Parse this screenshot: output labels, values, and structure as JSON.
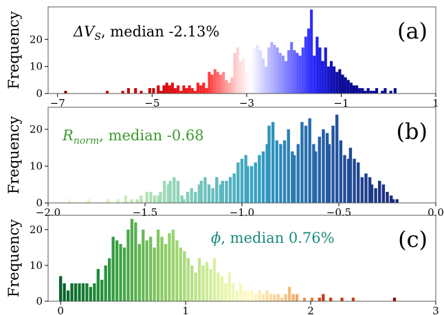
{
  "chart_data": [
    {
      "type": "bar",
      "panel_label": "(a)",
      "annotation": {
        "symbol": "ΔV",
        "subscript": "S",
        "text": ", median -2.13%",
        "color": "#000000"
      },
      "ylabel": "Frequency",
      "xlim": [
        -7.2,
        1.0
      ],
      "ylim": [
        0,
        32
      ],
      "xticks": [
        {
          "value": -7,
          "label": "−7"
        },
        {
          "value": -5,
          "label": "−5"
        },
        {
          "value": -3,
          "label": "−3"
        },
        {
          "value": -1,
          "label": "−1"
        },
        {
          "value": 1,
          "label": "1"
        }
      ],
      "yticks": [
        0,
        10,
        20
      ],
      "colormap": "seismic_r",
      "color_range": [
        -5.0,
        -1.0
      ],
      "bin_width": 0.06,
      "bins": [
        [
          -6.83,
          1
        ],
        [
          -5.95,
          1
        ],
        [
          -5.62,
          1
        ],
        [
          -5.5,
          2
        ],
        [
          -5.35,
          2
        ],
        [
          -5.23,
          1
        ],
        [
          -5.05,
          2
        ],
        [
          -4.97,
          2
        ],
        [
          -4.87,
          3
        ],
        [
          -4.81,
          1
        ],
        [
          -4.75,
          3
        ],
        [
          -4.69,
          4
        ],
        [
          -4.63,
          3
        ],
        [
          -4.57,
          4
        ],
        [
          -4.51,
          2
        ],
        [
          -4.45,
          3
        ],
        [
          -4.39,
          1
        ],
        [
          -4.33,
          3
        ],
        [
          -4.27,
          2
        ],
        [
          -4.21,
          3
        ],
        [
          -4.15,
          2
        ],
        [
          -4.09,
          1
        ],
        [
          -4.03,
          4
        ],
        [
          -3.97,
          3
        ],
        [
          -3.91,
          4
        ],
        [
          -3.85,
          2
        ],
        [
          -3.79,
          8
        ],
        [
          -3.73,
          7
        ],
        [
          -3.67,
          9
        ],
        [
          -3.61,
          8
        ],
        [
          -3.55,
          7
        ],
        [
          -3.49,
          8
        ],
        [
          -3.43,
          5
        ],
        [
          -3.37,
          4
        ],
        [
          -3.31,
          6
        ],
        [
          -3.25,
          15
        ],
        [
          -3.19,
          17
        ],
        [
          -3.13,
          12
        ],
        [
          -3.07,
          13
        ],
        [
          -3.01,
          8
        ],
        [
          -2.95,
          10
        ],
        [
          -2.89,
          13
        ],
        [
          -2.83,
          17
        ],
        [
          -2.77,
          18
        ],
        [
          -2.71,
          16
        ],
        [
          -2.65,
          13
        ],
        [
          -2.59,
          10
        ],
        [
          -2.53,
          17
        ],
        [
          -2.47,
          19
        ],
        [
          -2.41,
          18
        ],
        [
          -2.35,
          17
        ],
        [
          -2.29,
          15
        ],
        [
          -2.23,
          14
        ],
        [
          -2.17,
          12
        ],
        [
          -2.11,
          16
        ],
        [
          -2.05,
          19
        ],
        [
          -1.99,
          16
        ],
        [
          -1.93,
          15
        ],
        [
          -1.87,
          14
        ],
        [
          -1.81,
          17
        ],
        [
          -1.75,
          21
        ],
        [
          -1.69,
          24
        ],
        [
          -1.63,
          31
        ],
        [
          -1.57,
          14
        ],
        [
          -1.51,
          21
        ],
        [
          -1.45,
          17
        ],
        [
          -1.39,
          12
        ],
        [
          -1.33,
          17
        ],
        [
          -1.27,
          10
        ],
        [
          -1.21,
          12
        ],
        [
          -1.15,
          10
        ],
        [
          -1.09,
          8
        ],
        [
          -1.03,
          9
        ],
        [
          -0.97,
          7
        ],
        [
          -0.91,
          6
        ],
        [
          -0.85,
          5
        ],
        [
          -0.79,
          4
        ],
        [
          -0.73,
          3
        ],
        [
          -0.67,
          3
        ],
        [
          -0.61,
          2
        ],
        [
          -0.55,
          2
        ],
        [
          -0.49,
          1
        ],
        [
          -0.43,
          2
        ],
        [
          -0.37,
          1
        ],
        [
          -0.31,
          1
        ],
        [
          -0.25,
          2
        ],
        [
          -0.13,
          1
        ],
        [
          -0.07,
          2
        ],
        [
          0.05,
          1
        ],
        [
          0.14,
          2
        ]
      ],
      "highlight_bins": [
        [
          -6.83,
          "#8b0000"
        ]
      ]
    },
    {
      "type": "bar",
      "panel_label": "(b)",
      "annotation": {
        "symbol": "R",
        "subscript": "norm",
        "text": ", median -0.68",
        "color": "#3a9a2a"
      },
      "ylabel": "Frequency",
      "xlim": [
        -2.0,
        0.0
      ],
      "ylim": [
        0,
        26
      ],
      "xticks": [
        {
          "value": -2.0,
          "label": "−2.0"
        },
        {
          "value": -1.5,
          "label": "−1.5"
        },
        {
          "value": -1.0,
          "label": "−1.0"
        },
        {
          "value": -0.5,
          "label": "−0.5"
        },
        {
          "value": 0.0,
          "label": "0.0"
        }
      ],
      "yticks": [
        0,
        10,
        20
      ],
      "colormap": "YlGnBu",
      "color_range": [
        -2.0,
        -0.2
      ],
      "bin_width": 0.0157,
      "bins": [
        [
          -1.89,
          1
        ],
        [
          -1.79,
          1
        ],
        [
          -1.69,
          1
        ],
        [
          -1.64,
          1
        ],
        [
          -1.6,
          2
        ],
        [
          -1.57,
          1
        ],
        [
          -1.54,
          1
        ],
        [
          -1.52,
          2
        ],
        [
          -1.49,
          3
        ],
        [
          -1.47,
          3
        ],
        [
          -1.45,
          2
        ],
        [
          -1.43,
          2
        ],
        [
          -1.42,
          3
        ],
        [
          -1.4,
          6
        ],
        [
          -1.38,
          5
        ],
        [
          -1.37,
          6
        ],
        [
          -1.35,
          7
        ],
        [
          -1.33,
          6
        ],
        [
          -1.31,
          2
        ],
        [
          -1.3,
          1
        ],
        [
          -1.28,
          3
        ],
        [
          -1.26,
          4
        ],
        [
          -1.24,
          3
        ],
        [
          -1.22,
          5
        ],
        [
          -1.21,
          6
        ],
        [
          -1.19,
          7
        ],
        [
          -1.17,
          5
        ],
        [
          -1.15,
          4
        ],
        [
          -1.13,
          7
        ],
        [
          -1.11,
          5
        ],
        [
          -1.1,
          6
        ],
        [
          -1.08,
          6
        ],
        [
          -1.06,
          7
        ],
        [
          -1.04,
          8
        ],
        [
          -1.02,
          11
        ],
        [
          -1.0,
          12
        ],
        [
          -0.98,
          13
        ],
        [
          -0.97,
          10
        ],
        [
          -0.95,
          10
        ],
        [
          -0.93,
          11
        ],
        [
          -0.91,
          13
        ],
        [
          -0.89,
          14
        ],
        [
          -0.87,
          16
        ],
        [
          -0.86,
          21
        ],
        [
          -0.84,
          22
        ],
        [
          -0.82,
          17
        ],
        [
          -0.8,
          16
        ],
        [
          -0.78,
          17
        ],
        [
          -0.76,
          20
        ],
        [
          -0.74,
          14
        ],
        [
          -0.73,
          13
        ],
        [
          -0.71,
          16
        ],
        [
          -0.69,
          22
        ],
        [
          -0.67,
          21
        ],
        [
          -0.65,
          23
        ],
        [
          -0.63,
          16
        ],
        [
          -0.62,
          14
        ],
        [
          -0.6,
          18
        ],
        [
          -0.58,
          20
        ],
        [
          -0.56,
          19
        ],
        [
          -0.55,
          16
        ],
        [
          -0.53,
          21
        ],
        [
          -0.51,
          24
        ],
        [
          -0.49,
          17
        ],
        [
          -0.47,
          13
        ],
        [
          -0.45,
          12
        ],
        [
          -0.44,
          15
        ],
        [
          -0.42,
          12
        ],
        [
          -0.4,
          11
        ],
        [
          -0.38,
          7
        ],
        [
          -0.36,
          8
        ],
        [
          -0.34,
          7
        ],
        [
          -0.33,
          5
        ],
        [
          -0.31,
          4
        ],
        [
          -0.29,
          6
        ],
        [
          -0.27,
          5
        ],
        [
          -0.25,
          3
        ],
        [
          -0.23,
          2
        ],
        [
          -0.22,
          1
        ],
        [
          -0.2,
          1
        ]
      ]
    },
    {
      "type": "bar",
      "panel_label": "(c)",
      "annotation": {
        "symbol": "ϕ",
        "subscript": "",
        "text": ",  median 0.76%",
        "color": "#178a7a"
      },
      "ylabel": "Frequency",
      "xlim": [
        -0.1,
        3.0
      ],
      "ylim": [
        0,
        24
      ],
      "xticks": [
        {
          "value": 0,
          "label": "0"
        },
        {
          "value": 1,
          "label": "1"
        },
        {
          "value": 2,
          "label": "2"
        },
        {
          "value": 3,
          "label": "3"
        }
      ],
      "yticks": [
        0,
        10,
        20
      ],
      "colormap": "YlGn_r_to_Oranges",
      "color_range": [
        0.0,
        2.1
      ],
      "bin_width": 0.0235,
      "bins": [
        [
          0.0,
          7
        ],
        [
          0.03,
          5
        ],
        [
          0.06,
          3
        ],
        [
          0.09,
          5
        ],
        [
          0.12,
          5
        ],
        [
          0.15,
          5
        ],
        [
          0.18,
          5
        ],
        [
          0.21,
          5
        ],
        [
          0.24,
          4
        ],
        [
          0.27,
          5
        ],
        [
          0.3,
          9
        ],
        [
          0.33,
          6
        ],
        [
          0.36,
          10
        ],
        [
          0.39,
          12
        ],
        [
          0.42,
          18
        ],
        [
          0.45,
          17
        ],
        [
          0.48,
          16
        ],
        [
          0.51,
          15
        ],
        [
          0.54,
          20
        ],
        [
          0.57,
          23
        ],
        [
          0.6,
          22
        ],
        [
          0.63,
          16
        ],
        [
          0.66,
          20
        ],
        [
          0.69,
          17
        ],
        [
          0.72,
          18
        ],
        [
          0.75,
          15
        ],
        [
          0.78,
          20
        ],
        [
          0.81,
          18
        ],
        [
          0.84,
          16
        ],
        [
          0.87,
          19
        ],
        [
          0.9,
          20
        ],
        [
          0.93,
          17
        ],
        [
          0.96,
          15
        ],
        [
          0.99,
          14
        ],
        [
          1.02,
          12
        ],
        [
          1.05,
          10
        ],
        [
          1.08,
          8
        ],
        [
          1.11,
          12
        ],
        [
          1.14,
          10
        ],
        [
          1.17,
          11
        ],
        [
          1.2,
          9
        ],
        [
          1.23,
          12
        ],
        [
          1.26,
          8
        ],
        [
          1.29,
          7
        ],
        [
          1.32,
          5
        ],
        [
          1.35,
          8
        ],
        [
          1.38,
          5
        ],
        [
          1.41,
          3
        ],
        [
          1.44,
          5
        ],
        [
          1.47,
          3
        ],
        [
          1.5,
          3
        ],
        [
          1.53,
          3
        ],
        [
          1.56,
          2
        ],
        [
          1.59,
          3
        ],
        [
          1.62,
          2
        ],
        [
          1.65,
          3
        ],
        [
          1.68,
          2
        ],
        [
          1.71,
          2
        ],
        [
          1.74,
          2
        ],
        [
          1.77,
          1
        ],
        [
          1.8,
          2
        ],
        [
          1.83,
          4
        ],
        [
          1.86,
          2
        ],
        [
          1.89,
          2
        ],
        [
          1.95,
          1
        ],
        [
          2.01,
          1
        ],
        [
          2.07,
          1
        ],
        [
          2.1,
          2
        ],
        [
          2.16,
          1
        ],
        [
          2.25,
          1
        ],
        [
          2.34,
          1
        ],
        [
          2.67,
          1
        ]
      ],
      "highlight_bins": [
        [
          2.67,
          "#8b0000"
        ]
      ]
    }
  ]
}
